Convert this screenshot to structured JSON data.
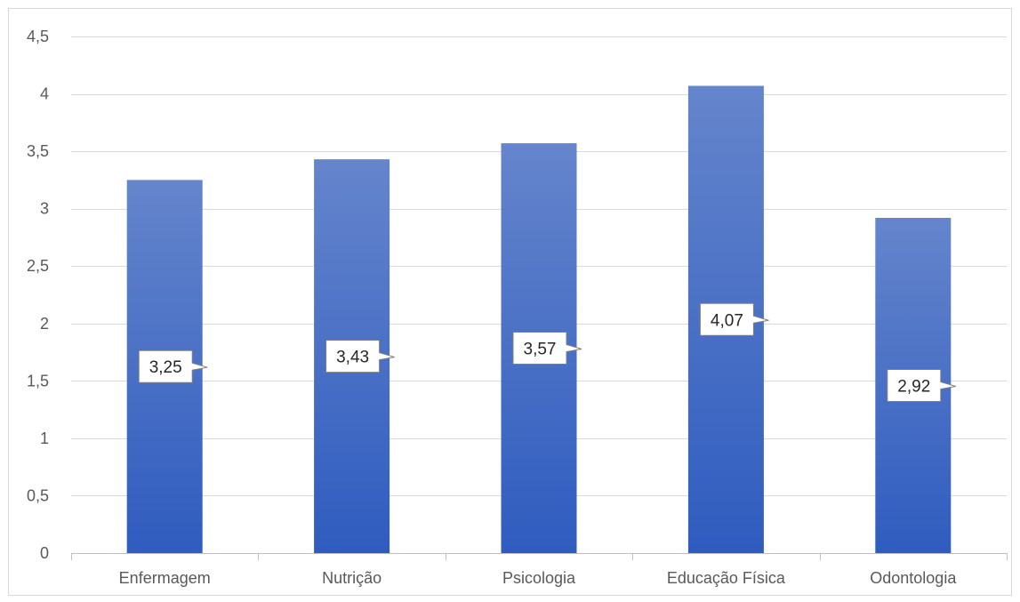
{
  "chart_data": {
    "type": "bar",
    "categories": [
      "Enfermagem",
      "Nutrição",
      "Psicologia",
      "Educação Física",
      "Odontologia"
    ],
    "values": [
      3.25,
      3.43,
      3.57,
      4.07,
      2.92
    ],
    "data_labels": [
      "3,25",
      "3,43",
      "3,57",
      "4,07",
      "2,92"
    ],
    "title": "",
    "xlabel": "",
    "ylabel": "",
    "ylim": [
      0,
      4.5
    ],
    "yticks": [
      0,
      0.5,
      1,
      1.5,
      2,
      2.5,
      3,
      3.5,
      4,
      4.5
    ],
    "ytick_labels": [
      "0",
      "0,5",
      "1",
      "1,5",
      "2",
      "2,5",
      "3",
      "3,5",
      "4",
      "4,5"
    ],
    "grid": true,
    "legend": "none",
    "colors": {
      "bar_top": "#6585cc",
      "bar_bottom": "#2f5cbf",
      "grid": "#d9d9d9",
      "axis": "#bfbfbf",
      "tick_text": "#595959",
      "label_border": "#7f7f7f"
    }
  }
}
